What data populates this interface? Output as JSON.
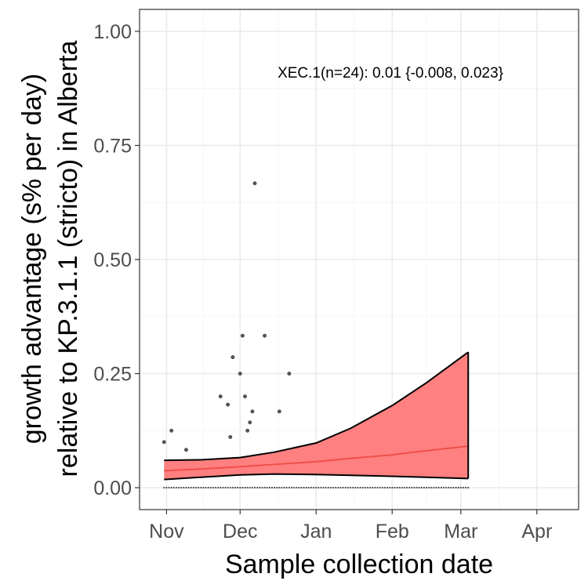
{
  "chart_data": {
    "type": "scatter",
    "title": "",
    "xlabel": "Sample collection date",
    "ylabel_line1": "growth advantage (s% per day)",
    "ylabel_line2": "relative to KP.3.1.1 (stricto) in Alberta",
    "annotation": "XEC.1(n=24): 0.01 {-0.008, 0.023}",
    "x_axis_kind": "date",
    "xlim": [
      "2024-10-21",
      "2025-04-18"
    ],
    "ylim": [
      -0.048,
      1.048
    ],
    "grid": true,
    "legend": "none",
    "colors": {
      "ribbon_fill": "#ff8080",
      "ribbon_edge": "#000000",
      "fit_line": "#f0504a",
      "points": "#555555",
      "grid_major": "#ebebeb",
      "grid_minor": "#f5f5f5",
      "panel_border": "#333333"
    },
    "x_ticks": [
      {
        "date": "2024-11-01",
        "label": "Nov"
      },
      {
        "date": "2024-12-01",
        "label": "Dec"
      },
      {
        "date": "2025-01-01",
        "label": "Jan"
      },
      {
        "date": "2025-02-01",
        "label": "Feb"
      },
      {
        "date": "2025-03-01",
        "label": "Mar"
      },
      {
        "date": "2025-04-01",
        "label": "Apr"
      }
    ],
    "y_ticks": [
      {
        "value": 0.0,
        "label": "0.00"
      },
      {
        "value": 0.25,
        "label": "0.25"
      },
      {
        "value": 0.5,
        "label": "0.50"
      },
      {
        "value": 0.75,
        "label": "0.75"
      },
      {
        "value": 1.0,
        "label": "1.00"
      }
    ],
    "fit": {
      "x": [
        "2024-10-31",
        "2024-11-15",
        "2024-12-01",
        "2024-12-15",
        "2025-01-01",
        "2025-01-15",
        "2025-02-01",
        "2025-02-15",
        "2025-03-04"
      ],
      "y": [
        0.037,
        0.041,
        0.046,
        0.051,
        0.057,
        0.064,
        0.072,
        0.081,
        0.091
      ],
      "upper": [
        0.06,
        0.061,
        0.066,
        0.078,
        0.098,
        0.13,
        0.18,
        0.23,
        0.297
      ],
      "lower": [
        0.018,
        0.023,
        0.028,
        0.03,
        0.029,
        0.027,
        0.025,
        0.023,
        0.02
      ]
    },
    "points": [
      {
        "x": "2024-10-31",
        "y": 0.1
      },
      {
        "x": "2024-11-03",
        "y": 0.125
      },
      {
        "x": "2024-11-09",
        "y": 0.083
      },
      {
        "x": "2024-11-23",
        "y": 0.2
      },
      {
        "x": "2024-11-26",
        "y": 0.182
      },
      {
        "x": "2024-11-27",
        "y": 0.111
      },
      {
        "x": "2024-11-28",
        "y": 0.286
      },
      {
        "x": "2024-12-01",
        "y": 0.25
      },
      {
        "x": "2024-12-02",
        "y": 0.333
      },
      {
        "x": "2024-12-03",
        "y": 0.2
      },
      {
        "x": "2024-12-04",
        "y": 0.125
      },
      {
        "x": "2024-12-05",
        "y": 0.143
      },
      {
        "x": "2024-12-06",
        "y": 0.167
      },
      {
        "x": "2024-12-07",
        "y": 0.667
      },
      {
        "x": "2024-12-11",
        "y": 0.333
      },
      {
        "x": "2024-12-17",
        "y": 0.167
      },
      {
        "x": "2024-12-21",
        "y": 0.25
      }
    ],
    "zero_points": {
      "start": "2024-10-31",
      "end": "2025-03-04",
      "step_days": 1
    }
  }
}
